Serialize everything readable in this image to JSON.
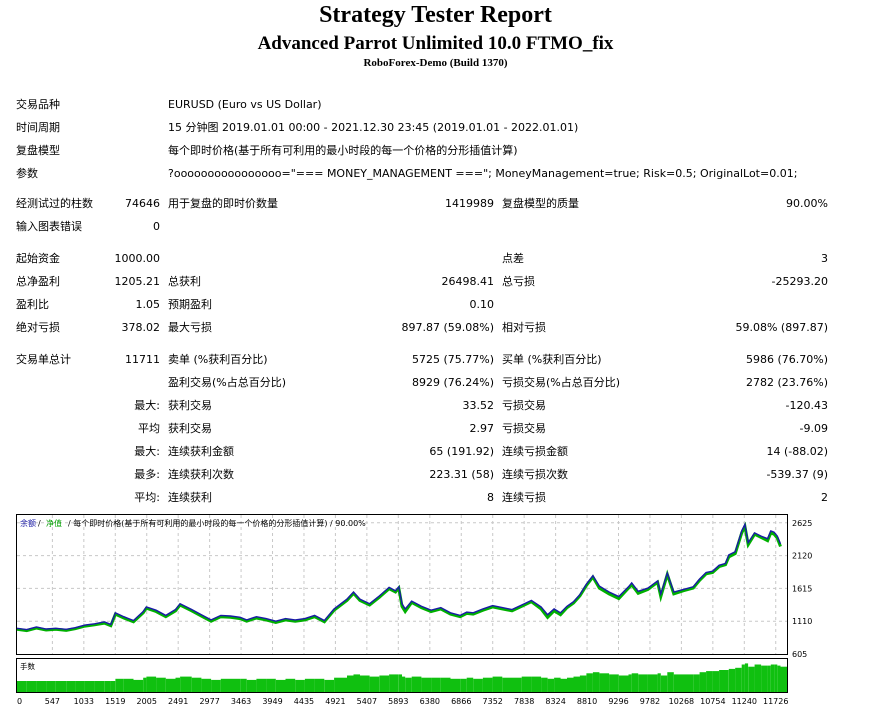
{
  "header": {
    "title": "Strategy Tester Report",
    "subtitle": "Advanced Parrot Unlimited 10.0 FTMO_fix",
    "server": "RoboForex-Demo (Build 1370)"
  },
  "settings": {
    "symbol_label": "交易品种",
    "symbol_value": "EURUSD (Euro vs US Dollar)",
    "period_label": "时间周期",
    "period_value": "15 分钟图 2019.01.01 00:00 - 2021.12.30 23:45 (2019.01.01 - 2022.01.01)",
    "model_label": "复盘模型",
    "model_value": "每个即时价格(基于所有可利用的最小时段的每一个价格的分形插值计算)",
    "params_label": "参数",
    "params_value": "?oooooooooooooooo=\"=== MONEY_MANAGEMENT ===\"; MoneyManagement=true; Risk=0.5; OriginalLot=0.01;"
  },
  "stats": {
    "bars_label": "经测试过的柱数",
    "bars_value": "74646",
    "ticks_label": "用于复盘的即时价数量",
    "ticks_value": "1419989",
    "quality_label": "复盘模型的质量",
    "quality_value": "90.00%",
    "errors_label": "输入图表错误",
    "errors_value": "0",
    "deposit_label": "起始资金",
    "deposit_value": "1000.00",
    "spread_label": "点差",
    "spread_value": "3",
    "net_label": "总净盈利",
    "net_value": "1205.21",
    "gross_profit_label": "总获利",
    "gross_profit_value": "26498.41",
    "gross_loss_label": "总亏损",
    "gross_loss_value": "-25293.20",
    "pf_label": "盈利比",
    "pf_value": "1.05",
    "payoff_label": "预期盈利",
    "payoff_value": "0.10",
    "abs_dd_label": "绝对亏损",
    "abs_dd_value": "378.02",
    "max_dd_label": "最大亏损",
    "max_dd_value": "897.87 (59.08%)",
    "rel_dd_label": "相对亏损",
    "rel_dd_value": "59.08% (897.87)",
    "trades_label": "交易单总计",
    "trades_value": "11711",
    "short_label": "卖单 (%获利百分比)",
    "short_value": "5725 (75.77%)",
    "long_label": "买单 (%获利百分比)",
    "long_value": "5986 (76.70%)",
    "win_label": "盈利交易(%占总百分比)",
    "win_value": "8929 (76.24%)",
    "loss_label": "亏损交易(%占总百分比)",
    "loss_value": "2782 (23.76%)",
    "max_pre": "最大:",
    "largest_win_label": "获利交易",
    "largest_win_value": "33.52",
    "largest_loss_label": "亏损交易",
    "largest_loss_value": "-120.43",
    "avg_pre": "平均",
    "avg_win_label": "获利交易",
    "avg_win_value": "2.97",
    "avg_loss_label": "亏损交易",
    "avg_loss_value": "-9.09",
    "max2_pre": "最大:",
    "cons_wins_money_label": "连续获利金额",
    "cons_wins_money_value": "65 (191.92)",
    "cons_losses_money_label": "连续亏损金额",
    "cons_losses_money_value": "14 (-88.02)",
    "most_pre": "最多:",
    "cons_profit_count_label": "连续获利次数",
    "cons_profit_count_value": "223.31 (58)",
    "cons_loss_count_label": "连续亏损次数",
    "cons_loss_count_value": "-539.37 (9)",
    "avg2_pre": "平均:",
    "avg_cons_wins_label": "连续获利",
    "avg_cons_wins_value": "8",
    "avg_cons_losses_label": "连续亏损",
    "avg_cons_losses_value": "2"
  },
  "chart_data": {
    "type": "line",
    "legend_balance": "余额",
    "legend_equity": "净值",
    "legend_sep": "/",
    "legend_rest": "/ 每个即时价格(基于所有可利用的最小时段的每一个价格的分形插值计算) / 90.00%",
    "lot_label": "手数",
    "y_ticks": [
      "2625",
      "2120",
      "1615",
      "1110",
      "605"
    ],
    "y_tick_values": [
      2625,
      2120,
      1615,
      1110,
      605
    ],
    "ylim": [
      605,
      2745
    ],
    "x_ticks": [
      "0",
      "547",
      "1033",
      "1519",
      "2005",
      "2491",
      "2977",
      "3463",
      "3949",
      "4435",
      "4921",
      "5407",
      "5893",
      "6380",
      "6866",
      "7352",
      "7838",
      "8324",
      "8810",
      "9296",
      "9782",
      "10268",
      "10754",
      "11240",
      "11726"
    ],
    "xlim": [
      0,
      11900
    ],
    "colors": {
      "balance": "#1a1aa6",
      "equity": "#00b000",
      "lots": "#10c010",
      "grid": "#c8c8c8"
    },
    "series": [
      {
        "name": "余额",
        "x": [
          0,
          150,
          300,
          450,
          600,
          760,
          900,
          1050,
          1200,
          1350,
          1450,
          1520,
          1650,
          1800,
          1950,
          2000,
          2150,
          2300,
          2450,
          2520,
          2700,
          2850,
          3000,
          3150,
          3300,
          3450,
          3550,
          3700,
          3850,
          4000,
          4150,
          4300,
          4450,
          4600,
          4750,
          4900,
          5100,
          5200,
          5300,
          5450,
          5600,
          5750,
          5850,
          5900,
          5950,
          6000,
          6100,
          6250,
          6400,
          6550,
          6700,
          6850,
          6950,
          7050,
          7200,
          7350,
          7500,
          7650,
          7800,
          7950,
          8100,
          8200,
          8300,
          8400,
          8500,
          8600,
          8700,
          8800,
          8900,
          9000,
          9150,
          9300,
          9450,
          9500,
          9600,
          9750,
          9900,
          9950,
          10050,
          10150,
          10300,
          10450,
          10550,
          10650,
          10750,
          10850,
          10950,
          11000,
          11100,
          11200,
          11250,
          11300,
          11400,
          11500,
          11600,
          11650,
          11700,
          11750,
          11800
        ],
        "y": [
          1000,
          980,
          1020,
          990,
          1000,
          985,
          1010,
          1050,
          1070,
          1100,
          1060,
          1240,
          1180,
          1120,
          1260,
          1330,
          1280,
          1200,
          1290,
          1380,
          1290,
          1210,
          1130,
          1200,
          1190,
          1170,
          1130,
          1180,
          1150,
          1110,
          1150,
          1130,
          1150,
          1200,
          1120,
          1300,
          1450,
          1560,
          1450,
          1380,
          1500,
          1630,
          1580,
          1640,
          1380,
          1300,
          1420,
          1340,
          1280,
          1320,
          1240,
          1200,
          1250,
          1240,
          1300,
          1350,
          1320,
          1290,
          1360,
          1430,
          1330,
          1210,
          1300,
          1240,
          1340,
          1410,
          1520,
          1680,
          1810,
          1650,
          1560,
          1490,
          1640,
          1700,
          1570,
          1620,
          1730,
          1530,
          1850,
          1560,
          1600,
          1640,
          1760,
          1860,
          1880,
          1970,
          2000,
          2130,
          2180,
          2500,
          2600,
          2320,
          2470,
          2420,
          2380,
          2500,
          2480,
          2420,
          2300
        ]
      },
      {
        "name": "净值",
        "x": [
          0,
          150,
          300,
          450,
          600,
          760,
          900,
          1050,
          1200,
          1350,
          1450,
          1520,
          1650,
          1800,
          1950,
          2000,
          2150,
          2300,
          2450,
          2520,
          2700,
          2850,
          3000,
          3150,
          3300,
          3450,
          3550,
          3700,
          3850,
          4000,
          4150,
          4300,
          4450,
          4600,
          4750,
          4900,
          5100,
          5200,
          5300,
          5450,
          5600,
          5750,
          5850,
          5900,
          5950,
          6000,
          6100,
          6250,
          6400,
          6550,
          6700,
          6850,
          6950,
          7050,
          7200,
          7350,
          7500,
          7650,
          7800,
          7950,
          8100,
          8200,
          8300,
          8400,
          8500,
          8600,
          8700,
          8800,
          8900,
          9000,
          9150,
          9300,
          9450,
          9500,
          9600,
          9750,
          9900,
          9950,
          10050,
          10150,
          10300,
          10450,
          10550,
          10650,
          10750,
          10850,
          10950,
          11000,
          11100,
          11200,
          11250,
          11300,
          11400,
          11500,
          11600,
          11650,
          11700,
          11750,
          11800
        ],
        "y": [
          985,
          965,
          1005,
          975,
          985,
          970,
          995,
          1035,
          1055,
          1080,
          1040,
          1220,
          1160,
          1100,
          1240,
          1310,
          1260,
          1180,
          1270,
          1360,
          1270,
          1190,
          1110,
          1180,
          1170,
          1150,
          1110,
          1160,
          1130,
          1090,
          1130,
          1110,
          1130,
          1180,
          1100,
          1280,
          1430,
          1540,
          1430,
          1360,
          1480,
          1610,
          1560,
          1620,
          1340,
          1260,
          1400,
          1320,
          1260,
          1300,
          1220,
          1180,
          1230,
          1220,
          1280,
          1330,
          1300,
          1270,
          1340,
          1410,
          1300,
          1170,
          1270,
          1210,
          1320,
          1390,
          1500,
          1660,
          1790,
          1620,
          1530,
          1460,
          1620,
          1670,
          1540,
          1600,
          1710,
          1490,
          1830,
          1530,
          1580,
          1620,
          1740,
          1840,
          1860,
          1950,
          1980,
          2100,
          2150,
          2470,
          2570,
          2290,
          2450,
          2400,
          2350,
          2470,
          2450,
          2390,
          2260
        ]
      }
    ],
    "lots": [
      0.01,
      0.01,
      0.01,
      0.01,
      0.01,
      0.01,
      0.01,
      0.01,
      0.01,
      0.01,
      0.01,
      0.012,
      0.012,
      0.011,
      0.013,
      0.014,
      0.013,
      0.012,
      0.013,
      0.014,
      0.013,
      0.012,
      0.011,
      0.012,
      0.012,
      0.012,
      0.011,
      0.012,
      0.012,
      0.011,
      0.012,
      0.011,
      0.012,
      0.012,
      0.011,
      0.013,
      0.015,
      0.016,
      0.015,
      0.014,
      0.015,
      0.016,
      0.016,
      0.016,
      0.014,
      0.013,
      0.014,
      0.013,
      0.013,
      0.013,
      0.012,
      0.012,
      0.013,
      0.012,
      0.013,
      0.014,
      0.013,
      0.013,
      0.014,
      0.014,
      0.013,
      0.012,
      0.013,
      0.012,
      0.013,
      0.014,
      0.015,
      0.017,
      0.018,
      0.017,
      0.016,
      0.015,
      0.016,
      0.017,
      0.016,
      0.016,
      0.017,
      0.015,
      0.018,
      0.016,
      0.016,
      0.016,
      0.018,
      0.019,
      0.019,
      0.02,
      0.02,
      0.021,
      0.022,
      0.025,
      0.026,
      0.023,
      0.025,
      0.024,
      0.024,
      0.025,
      0.025,
      0.024,
      0.023
    ]
  }
}
